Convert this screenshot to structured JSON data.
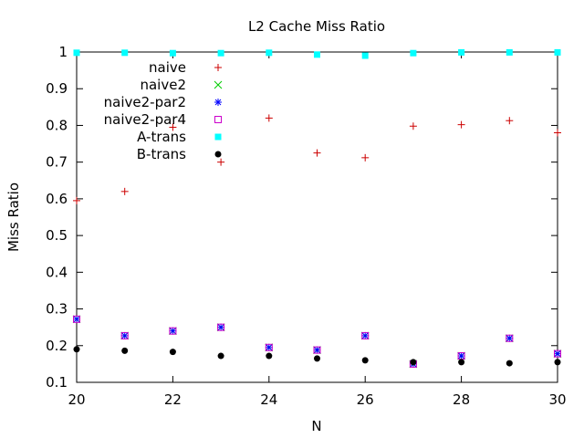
{
  "chart_data": {
    "type": "scatter",
    "title": "L2 Cache Miss Ratio",
    "xlabel": "N",
    "ylabel": "Miss Ratio",
    "xlim": [
      20,
      30
    ],
    "ylim": [
      0.1,
      1
    ],
    "xticks": [
      20,
      22,
      24,
      26,
      28,
      30
    ],
    "yticks": [
      0.1,
      0.2,
      0.3,
      0.4,
      0.5,
      0.6,
      0.7,
      0.8,
      0.9,
      1
    ],
    "legend_position": "top-left",
    "grid": false,
    "x": [
      20,
      21,
      22,
      23,
      24,
      25,
      26,
      27,
      28,
      29,
      30
    ],
    "series": [
      {
        "name": "naive",
        "marker": "plus",
        "color": "#cc0000",
        "values": [
          0.595,
          0.62,
          0.795,
          0.7,
          0.82,
          0.725,
          0.712,
          0.798,
          0.802,
          0.813,
          0.78
        ]
      },
      {
        "name": "naive2",
        "marker": "cross",
        "color": "#00cc00",
        "values": [
          0.272,
          0.227,
          0.24,
          0.25,
          0.195,
          0.188,
          0.227,
          0.15,
          0.172,
          0.22,
          0.178
        ]
      },
      {
        "name": "naive2-par2",
        "marker": "star",
        "color": "#0000ff",
        "values": [
          0.272,
          0.227,
          0.24,
          0.25,
          0.195,
          0.188,
          0.227,
          0.15,
          0.172,
          0.22,
          0.178
        ]
      },
      {
        "name": "naive2-par4",
        "marker": "open-square",
        "color": "#cc00cc",
        "values": [
          0.272,
          0.227,
          0.24,
          0.25,
          0.195,
          0.188,
          0.227,
          0.15,
          0.172,
          0.22,
          0.178
        ]
      },
      {
        "name": "A-trans",
        "marker": "filled-square",
        "color": "#00ffff",
        "values": [
          0.998,
          0.998,
          0.997,
          0.997,
          0.998,
          0.993,
          0.99,
          0.997,
          0.999,
          0.999,
          0.999
        ]
      },
      {
        "name": "B-trans",
        "marker": "filled-circle",
        "color": "#000000",
        "values": [
          0.19,
          0.186,
          0.183,
          0.172,
          0.172,
          0.165,
          0.16,
          0.155,
          0.155,
          0.152,
          0.155
        ]
      }
    ]
  }
}
